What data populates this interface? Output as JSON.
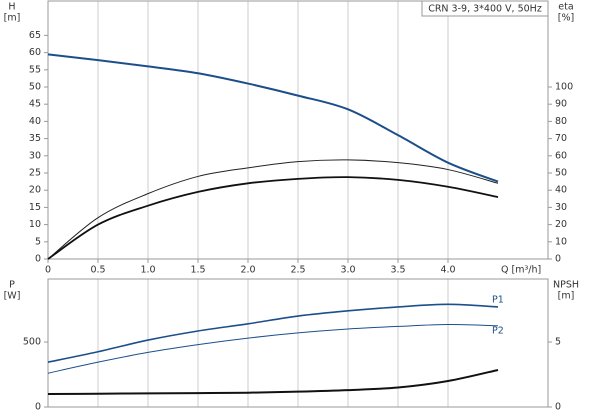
{
  "chart_data": [
    {
      "type": "line",
      "title": "CRN 3-9, 3*400 V, 50Hz",
      "ylabel": [
        "H",
        "[m]"
      ],
      "y2label": [
        "eta",
        "[%]"
      ],
      "xlabel": "Q [m³/h]",
      "x": [
        0,
        0.5,
        1,
        1.5,
        2,
        2.5,
        3,
        3.5,
        4,
        4.5
      ],
      "xlim": [
        0,
        5
      ],
      "xticks": [
        0,
        0.5,
        {
          "value": 1,
          "label": "1.0"
        },
        1.5,
        {
          "value": 2,
          "label": "2.0"
        },
        2.5,
        {
          "value": 3,
          "label": "3.0"
        },
        3.5,
        {
          "value": 4,
          "label": "4.0"
        }
      ],
      "ylim": [
        0,
        75
      ],
      "yticks": [
        0,
        5,
        10,
        15,
        20,
        25,
        30,
        35,
        40,
        45,
        50,
        55,
        60,
        65
      ],
      "y2lim": [
        0,
        150
      ],
      "y2ticks": [
        0,
        10,
        20,
        30,
        40,
        50,
        60,
        70,
        80,
        90,
        100
      ],
      "grid": true,
      "series": [
        {
          "color": "#1c4f8a",
          "width": 2,
          "values": [
            59.5,
            57.8,
            56,
            54,
            51,
            47.5,
            43.5,
            36,
            28,
            22.5
          ]
        },
        {
          "color": "#222222",
          "width": 1,
          "axis": "y2",
          "values": [
            0,
            24,
            38,
            48,
            53,
            56.6,
            57.6,
            56,
            52,
            44
          ]
        },
        {
          "color": "#111111",
          "width": 1.8,
          "axis": "y2",
          "values": [
            0,
            20,
            31,
            39,
            44,
            46.6,
            47.6,
            46,
            42,
            36
          ]
        }
      ]
    },
    {
      "type": "line",
      "ylabel": [
        "P",
        "[W]"
      ],
      "y2label": [
        "NPSH",
        "[m]"
      ],
      "x": [
        0,
        0.5,
        1,
        1.5,
        2,
        2.5,
        3,
        3.5,
        4,
        4.5
      ],
      "xlim": [
        0,
        5
      ],
      "xticks": [
        0.5,
        1,
        1.5,
        2,
        2.5,
        3,
        3.5,
        4
      ],
      "ylim": [
        0,
        985
      ],
      "yticks": [
        0,
        500
      ],
      "y2lim": [
        0,
        9.85
      ],
      "y2ticks": [
        0,
        5
      ],
      "grid": true,
      "series": [
        {
          "name": "P1",
          "color": "#1c4f8a",
          "width": 1.6,
          "values": [
            345,
            425,
            515,
            585,
            640,
            700,
            740,
            770,
            790,
            770
          ]
        },
        {
          "name": "P2",
          "color": "#1c4f8a",
          "width": 1,
          "values": [
            260,
            345,
            420,
            480,
            530,
            570,
            600,
            620,
            635,
            625
          ]
        },
        {
          "color": "#111111",
          "width": 2,
          "axis": "y2",
          "values": [
            1,
            1.02,
            1.05,
            1.07,
            1.1,
            1.18,
            1.3,
            1.5,
            2,
            2.85
          ]
        }
      ]
    }
  ]
}
